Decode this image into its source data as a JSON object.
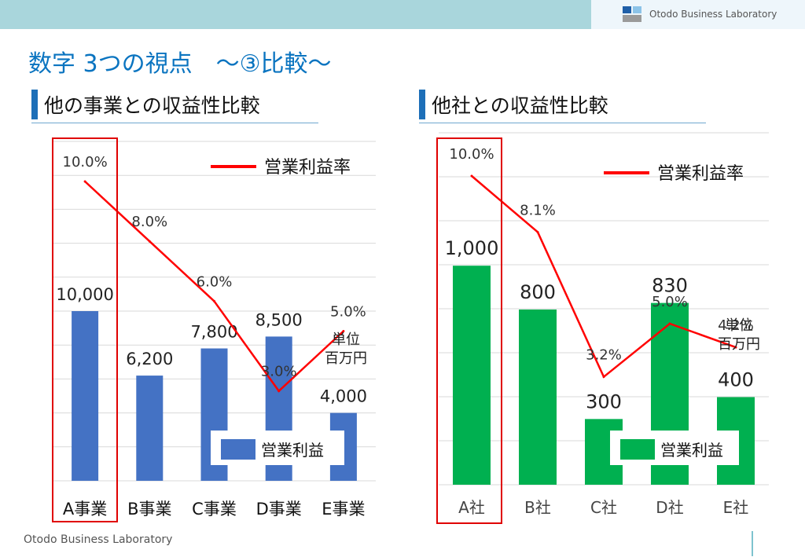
{
  "header": {
    "brand": "Otodo Business Laboratory",
    "title": "数字 3つの視点　～③比較～"
  },
  "footer": {
    "brand": "Otodo Business Laboratory"
  },
  "colors": {
    "bar_left": "#4472c4",
    "bar_right": "#00b050",
    "line": "#ff0000",
    "highlight": "#e00000",
    "title": "#0a74c0"
  },
  "charts": {
    "left": {
      "section_title": "他の事業との収益性比較",
      "unit_label": [
        "単位",
        "百万円"
      ],
      "bar_label_format": "number",
      "line_label_format": "one_decimal"
    },
    "right": {
      "section_title": "他社との収益性比較",
      "unit_label": [
        "単位",
        "百万円"
      ],
      "bar_label_format": "number",
      "line_label_format": "one_decimal"
    }
  },
  "chart_data": [
    {
      "type": "bar",
      "title": "他の事業との収益性比較",
      "categories": [
        "A事業",
        "B事業",
        "C事業",
        "D事業",
        "E事業"
      ],
      "series": [
        {
          "name": "営業利益",
          "type": "bar",
          "values": [
            10000,
            6200,
            7800,
            8500,
            4000
          ]
        },
        {
          "name": "営業利益率",
          "type": "line",
          "values": [
            10.0,
            8.0,
            6.0,
            3.0,
            5.0
          ],
          "unit": "%"
        }
      ],
      "ylim": [
        0,
        20000
      ],
      "line_ylim": [
        0,
        10
      ],
      "highlight_category": "A事業",
      "grid": true
    },
    {
      "type": "bar",
      "title": "他社との収益性比較",
      "categories": [
        "A社",
        "B社",
        "C社",
        "D社",
        "E社"
      ],
      "series": [
        {
          "name": "営業利益",
          "type": "bar",
          "values": [
            1000,
            800,
            300,
            830,
            400
          ]
        },
        {
          "name": "営業利益率",
          "type": "line",
          "values": [
            10.0,
            8.1,
            3.2,
            5.0,
            4.2
          ],
          "unit": "%"
        }
      ],
      "ylim": [
        0,
        1650
      ],
      "line_ylim": [
        0,
        10
      ],
      "highlight_category": "A社",
      "grid": true
    }
  ]
}
